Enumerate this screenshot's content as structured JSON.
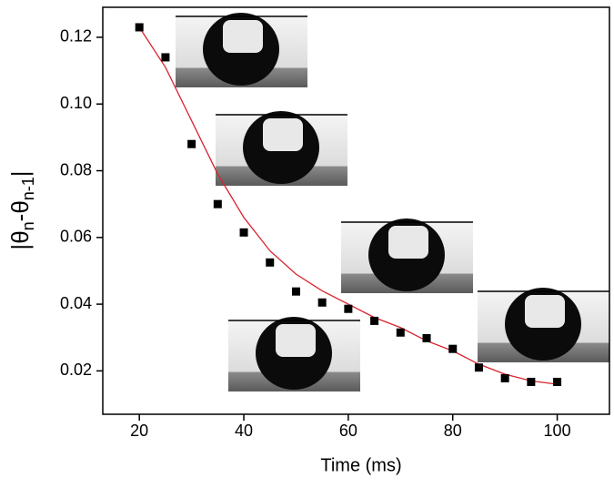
{
  "chart_data": {
    "type": "scatter",
    "xlabel": "Time  (ms)",
    "ylabel": [
      "|θ",
      "n",
      "-θ",
      "n-1",
      "|"
    ],
    "x": [
      20,
      25,
      30,
      35,
      40,
      45,
      50,
      55,
      60,
      65,
      70,
      75,
      80,
      85,
      90,
      95,
      100
    ],
    "series": [
      {
        "color": "#000000",
        "values": [
          0.123,
          0.114,
          0.088,
          0.07,
          0.0615,
          0.0525,
          0.0438,
          0.0405,
          0.0386,
          0.035,
          0.0315,
          0.0298,
          0.0266,
          0.021,
          0.0178,
          0.0167,
          0.0167
        ]
      },
      {
        "color": "#d9232e",
        "values": [
          0.123,
          0.111,
          0.095,
          0.079,
          0.066,
          0.056,
          0.049,
          0.044,
          0.04,
          0.036,
          0.033,
          0.029,
          0.026,
          0.022,
          0.019,
          0.017,
          0.016
        ]
      }
    ],
    "xlim": [
      13,
      110
    ],
    "xticks": [
      20,
      40,
      60,
      80,
      100
    ],
    "ylim": [
      0.007,
      0.129
    ],
    "yticks": [
      0.02,
      0.04,
      0.06,
      0.08,
      {
        "value": 0.1,
        "label": "0.10"
      },
      0.12
    ]
  }
}
